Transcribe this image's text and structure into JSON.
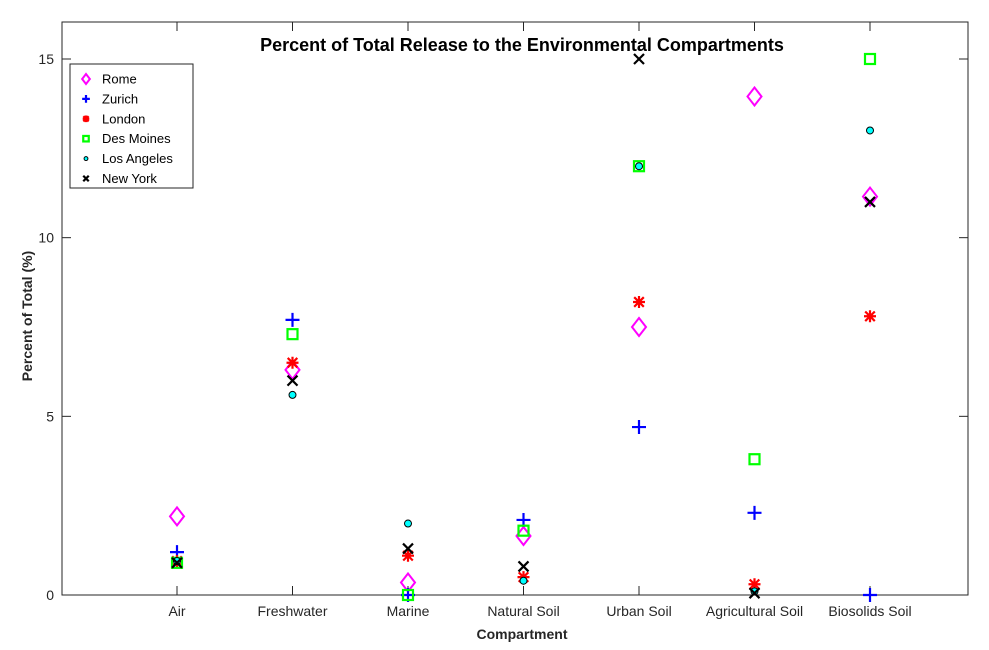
{
  "chart_data": {
    "type": "scatter",
    "title": "Percent of Total Release to the Environmental Compartments",
    "xlabel": "Compartment",
    "ylabel": "Percent of Total (%)",
    "categories": [
      "Air",
      "Freshwater",
      "Marine",
      "Natural Soil",
      "Urban Soil",
      "Agricultural Soil",
      "Biosolids Soil"
    ],
    "ylim": [
      0,
      15
    ],
    "yticks": [
      0,
      5,
      10,
      15
    ],
    "ytick_labels": [
      "0",
      "5",
      "10",
      "15"
    ],
    "grid": false,
    "legend_position": "top-left",
    "series": [
      {
        "name": "Rome",
        "marker": "diamond",
        "color": "#ff00ff",
        "values": [
          2.2,
          6.3,
          0.35,
          1.65,
          7.5,
          13.95,
          11.15
        ]
      },
      {
        "name": "Zurich",
        "marker": "plus",
        "color": "#0000ff",
        "values": [
          1.2,
          7.7,
          0.0,
          2.1,
          4.7,
          2.3,
          0.0
        ]
      },
      {
        "name": "London",
        "marker": "asterisk",
        "color": "#ff0000",
        "values": [
          0.95,
          6.5,
          1.1,
          0.5,
          8.2,
          0.3,
          7.8
        ]
      },
      {
        "name": "Des Moines",
        "marker": "square",
        "color": "#00ff00",
        "values": [
          0.9,
          7.3,
          0.0,
          1.8,
          12.0,
          3.8,
          15.0
        ]
      },
      {
        "name": "Los Angeles",
        "marker": "circle",
        "color": "#00ffff",
        "values": [
          0.95,
          5.6,
          2.0,
          0.4,
          12.0,
          0.1,
          13.0
        ]
      },
      {
        "name": "New York",
        "marker": "x",
        "color": "#000000",
        "values": [
          0.9,
          6.0,
          1.3,
          0.8,
          15.0,
          0.05,
          11.0
        ]
      }
    ]
  }
}
